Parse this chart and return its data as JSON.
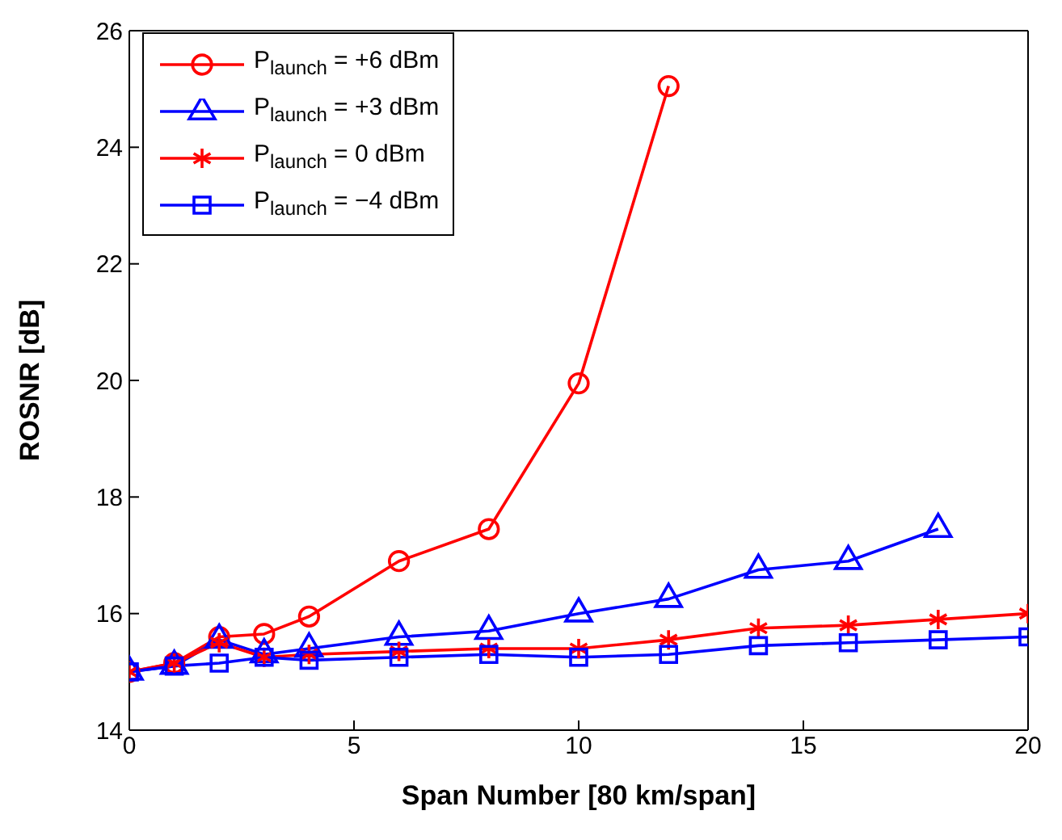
{
  "chart_data": {
    "type": "line",
    "xlabel": "Span Number [80 km/span]",
    "ylabel": "ROSNR [dB]",
    "xlim": [
      0,
      20
    ],
    "xticks": [
      0,
      5,
      10,
      15,
      20
    ],
    "ylim": [
      14,
      26
    ],
    "yticks": [
      14,
      16,
      18,
      20,
      22,
      24,
      26
    ],
    "legend": "top left",
    "line_style": "solid",
    "series": [
      {
        "name": "P$_{launch}$ = +6 dBm",
        "color": "#ff0000",
        "marker": "circle",
        "x": [
          0,
          1,
          2,
          3,
          4,
          6,
          8,
          10,
          12
        ],
        "values": [
          15.0,
          15.15,
          15.6,
          15.65,
          15.95,
          16.9,
          17.45,
          19.95,
          25.05
        ]
      },
      {
        "name": "P$_{launch}$ = +3 dBm",
        "color": "#0000ff",
        "marker": "triangle",
        "x": [
          0,
          1,
          2,
          3,
          4,
          6,
          8,
          10,
          12,
          14,
          16,
          18
        ],
        "values": [
          15.0,
          15.1,
          15.55,
          15.3,
          15.4,
          15.6,
          15.7,
          16.0,
          16.25,
          16.75,
          16.9,
          17.45
        ]
      },
      {
        "name": "P$_{launch}$ = 0 dBm",
        "color": "#ff0000",
        "marker": "cross",
        "x": [
          0,
          1,
          2,
          3,
          4,
          6,
          8,
          10,
          12,
          14,
          16,
          18,
          20
        ],
        "values": [
          15.0,
          15.15,
          15.5,
          15.25,
          15.3,
          15.35,
          15.4,
          15.4,
          15.55,
          15.75,
          15.8,
          15.9,
          16.0
        ]
      },
      {
        "name": "P$_{launch}$ = −4 dBm",
        "color": "#0000ff",
        "marker": "square",
        "x": [
          0,
          1,
          2,
          3,
          4,
          6,
          8,
          10,
          12,
          14,
          16,
          18,
          20
        ],
        "values": [
          15.0,
          15.1,
          15.15,
          15.25,
          15.2,
          15.25,
          15.3,
          15.25,
          15.3,
          15.45,
          15.5,
          15.55,
          15.6
        ]
      }
    ]
  }
}
